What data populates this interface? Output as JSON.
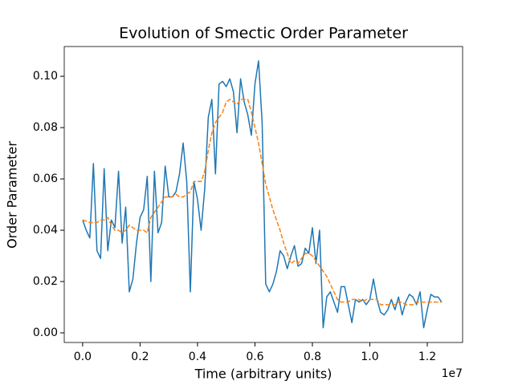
{
  "chart_data": {
    "type": "line",
    "title": "Evolution of Smectic Order Parameter",
    "xlabel": "Time (arbitrary units)",
    "ylabel": "Order Parameter",
    "x_offset_label": "1e7",
    "x": [
      0,
      125000,
      250000,
      375000,
      500000,
      625000,
      750000,
      875000,
      1000000,
      1125000,
      1250000,
      1375000,
      1500000,
      1625000,
      1750000,
      1875000,
      2000000,
      2125000,
      2250000,
      2375000,
      2500000,
      2625000,
      2750000,
      2875000,
      3000000,
      3125000,
      3250000,
      3375000,
      3500000,
      3625000,
      3750000,
      3875000,
      4000000,
      4125000,
      4250000,
      4375000,
      4500000,
      4625000,
      4750000,
      4875000,
      5000000,
      5125000,
      5250000,
      5375000,
      5500000,
      5625000,
      5750000,
      5875000,
      6000000,
      6125000,
      6250000,
      6375000,
      6500000,
      6625000,
      6750000,
      6875000,
      7000000,
      7125000,
      7250000,
      7375000,
      7500000,
      7625000,
      7750000,
      7875000,
      8000000,
      8125000,
      8250000,
      8375000,
      8500000,
      8625000,
      8750000,
      8875000,
      9000000,
      9125000,
      9250000,
      9375000,
      9500000,
      9625000,
      9750000,
      9875000,
      10000000,
      10125000,
      10250000,
      10375000,
      10500000,
      10625000,
      10750000,
      10875000,
      11000000,
      11125000,
      11250000,
      11375000,
      11500000,
      11625000,
      11750000,
      11875000,
      12000000,
      12125000,
      12250000,
      12375000,
      12500000
    ],
    "series": [
      {
        "color": "#1f77b4",
        "dashed": false,
        "values": [
          0.044,
          0.04,
          0.037,
          0.066,
          0.032,
          0.029,
          0.064,
          0.032,
          0.044,
          0.041,
          0.063,
          0.035,
          0.049,
          0.016,
          0.021,
          0.035,
          0.045,
          0.048,
          0.061,
          0.02,
          0.063,
          0.039,
          0.043,
          0.065,
          0.053,
          0.053,
          0.055,
          0.062,
          0.074,
          0.059,
          0.016,
          0.059,
          0.052,
          0.04,
          0.056,
          0.084,
          0.091,
          0.062,
          0.097,
          0.098,
          0.096,
          0.099,
          0.094,
          0.078,
          0.099,
          0.09,
          0.085,
          0.077,
          0.097,
          0.106,
          0.082,
          0.019,
          0.016,
          0.019,
          0.024,
          0.032,
          0.03,
          0.025,
          0.03,
          0.034,
          0.026,
          0.027,
          0.033,
          0.031,
          0.041,
          0.027,
          0.04,
          0.002,
          0.014,
          0.016,
          0.012,
          0.008,
          0.018,
          0.018,
          0.011,
          0.004,
          0.013,
          0.012,
          0.013,
          0.011,
          0.013,
          0.021,
          0.013,
          0.008,
          0.007,
          0.009,
          0.013,
          0.009,
          0.014,
          0.007,
          0.012,
          0.015,
          0.014,
          0.011,
          0.016,
          0.002,
          0.009,
          0.015,
          0.014,
          0.014,
          0.012
        ]
      },
      {
        "color": "#ff7f0e",
        "dashed": true,
        "values": [
          0.044,
          0.0435,
          0.043,
          0.043,
          0.043,
          0.044,
          0.044,
          0.045,
          0.042,
          0.04,
          0.04,
          0.039,
          0.04,
          0.042,
          0.041,
          0.04,
          0.04,
          0.04,
          0.039,
          0.045,
          0.047,
          0.049,
          0.051,
          0.053,
          0.053,
          0.053,
          0.054,
          0.053,
          0.053,
          0.054,
          0.055,
          0.059,
          0.059,
          0.059,
          0.063,
          0.071,
          0.078,
          0.082,
          0.084,
          0.086,
          0.09,
          0.091,
          0.09,
          0.089,
          0.091,
          0.091,
          0.091,
          0.086,
          0.08,
          0.074,
          0.066,
          0.058,
          0.053,
          0.048,
          0.044,
          0.04,
          0.035,
          0.031,
          0.027,
          0.028,
          0.027,
          0.029,
          0.031,
          0.031,
          0.03,
          0.028,
          0.026,
          0.024,
          0.022,
          0.019,
          0.016,
          0.013,
          0.012,
          0.012,
          0.012,
          0.013,
          0.013,
          0.013,
          0.012,
          0.013,
          0.013,
          0.013,
          0.013,
          0.011,
          0.011,
          0.011,
          0.011,
          0.011,
          0.012,
          0.012,
          0.011,
          0.011,
          0.011,
          0.012,
          0.012,
          0.012,
          0.012,
          0.012,
          0.012,
          0.012,
          0.012
        ]
      }
    ],
    "xlim": [
      -640000,
      13230000
    ],
    "xticks": [
      {
        "value": 0,
        "label": "0.0"
      },
      {
        "value": 2000000,
        "label": "0.2"
      },
      {
        "value": 4000000,
        "label": "0.4"
      },
      {
        "value": 6000000,
        "label": "0.6"
      },
      {
        "value": 8000000,
        "label": "0.8"
      },
      {
        "value": 10000000,
        "label": "1.0"
      },
      {
        "value": 12000000,
        "label": "1.2"
      }
    ],
    "ylim": [
      -0.00375,
      0.1116
    ],
    "yticks": [
      {
        "value": 0,
        "label": "0.00"
      },
      {
        "value": 0.02,
        "label": "0.02"
      },
      {
        "value": 0.04,
        "label": "0.04"
      },
      {
        "value": 0.06,
        "label": "0.06"
      },
      {
        "value": 0.08,
        "label": "0.08"
      },
      {
        "value": 0.1,
        "label": "0.10"
      }
    ],
    "grid": false
  }
}
